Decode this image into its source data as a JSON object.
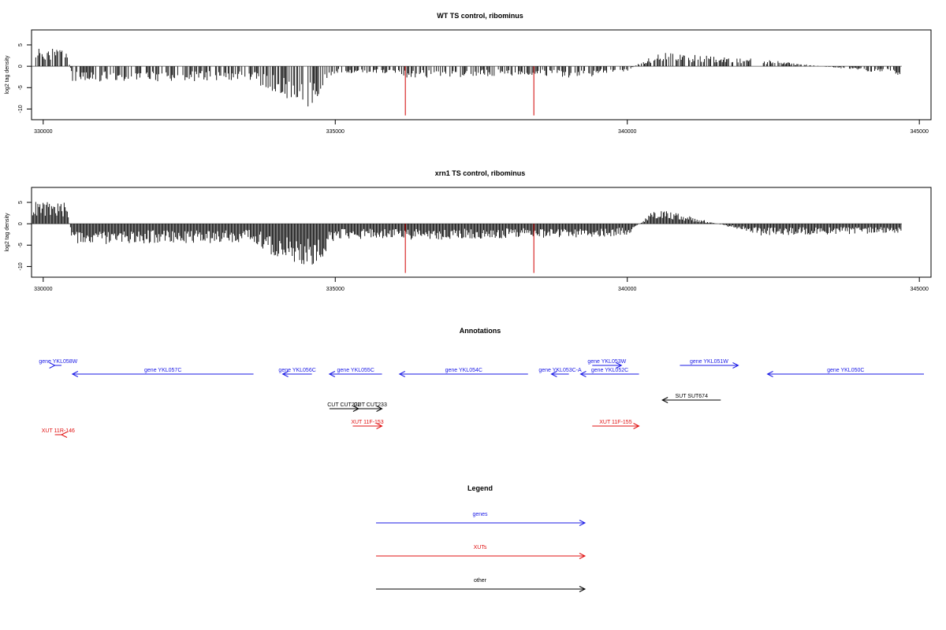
{
  "chart_data": [
    {
      "type": "bar",
      "title": "WT TS control, ribominus",
      "ylabel": "log2 tag density",
      "xlabel": "",
      "xlim": [
        329800,
        345200
      ],
      "ylim": [
        -12.5,
        8.5
      ],
      "x_ticks": [
        "330000",
        "335000",
        "340000",
        "345000"
      ],
      "y_ticks": [
        "5",
        "0",
        "-5",
        "-10"
      ],
      "grid": false,
      "series": [
        {
          "positions": [
            329800,
            330400,
            330500,
            333600,
            333800,
            334600,
            335000,
            336100,
            336200,
            338300,
            339200,
            340000,
            340500,
            342300,
            344700
          ],
          "values": [
            4.2,
            4.0,
            -3.5,
            -3.0,
            -5.0,
            -9.0,
            -1.5,
            -1.5,
            -2.5,
            -2.0,
            -2.5,
            -1.0,
            3.0,
            1.5,
            -2.0
          ]
        }
      ],
      "highlight_lines": [
        {
          "x": 336200,
          "value": -11.5,
          "color": "#d00000"
        },
        {
          "x": 338400,
          "value": -11.5,
          "color": "#d00000"
        }
      ]
    },
    {
      "type": "bar",
      "title": "xrn1 TS control, ribominus",
      "ylabel": "log2 tag density",
      "xlabel": "",
      "xlim": [
        329800,
        345200
      ],
      "ylim": [
        -12.5,
        8.5
      ],
      "x_ticks": [
        "330000",
        "335000",
        "340000",
        "345000"
      ],
      "y_ticks": [
        "5",
        "0",
        "-5",
        "-10"
      ],
      "grid": false,
      "series": [
        {
          "positions": [
            329800,
            330400,
            330500,
            333600,
            333800,
            334600,
            335000,
            336100,
            336200,
            338300,
            339200,
            340000,
            340500,
            342300,
            344700
          ],
          "values": [
            4.8,
            4.5,
            -4.5,
            -4.0,
            -6.0,
            -10.0,
            -3.5,
            -3.0,
            -3.5,
            -3.0,
            -3.0,
            -2.5,
            3.5,
            -2.5,
            -2.0
          ]
        }
      ],
      "highlight_lines": [
        {
          "x": 336200,
          "value": -11.5,
          "color": "#d00000"
        },
        {
          "x": 338400,
          "value": -11.5,
          "color": "#d00000"
        }
      ]
    }
  ],
  "annotations": {
    "title": "Annotations",
    "features": [
      {
        "label": "gene YKL058W",
        "start": 329850,
        "end": 330200,
        "row": 0,
        "strand": "+",
        "kind": "gene"
      },
      {
        "label": "gene YKL057C",
        "start": 330500,
        "end": 333600,
        "row": 1,
        "strand": "-",
        "kind": "gene"
      },
      {
        "label": "gene YKL056C",
        "start": 334100,
        "end": 334600,
        "row": 1,
        "strand": "-",
        "kind": "gene"
      },
      {
        "label": "gene YKL055C",
        "start": 334900,
        "end": 335800,
        "row": 1,
        "strand": "-",
        "kind": "gene"
      },
      {
        "label": "gene YKL054C",
        "start": 336100,
        "end": 338300,
        "row": 1,
        "strand": "-",
        "kind": "gene"
      },
      {
        "label": "gene YKL053W",
        "start": 339400,
        "end": 339900,
        "row": 0,
        "strand": "+",
        "kind": "gene"
      },
      {
        "label": "gene YKL053C-A",
        "start": 338700,
        "end": 339000,
        "row": 1,
        "strand": "-",
        "kind": "gene"
      },
      {
        "label": "gene YKL052C",
        "start": 339200,
        "end": 340200,
        "row": 1,
        "strand": "-",
        "kind": "gene"
      },
      {
        "label": "gene YKL051W",
        "start": 340900,
        "end": 341900,
        "row": 0,
        "strand": "+",
        "kind": "gene"
      },
      {
        "label": "gene YKL050C",
        "start": 342400,
        "end": 345200,
        "row": 1,
        "strand": "-",
        "kind": "gene"
      },
      {
        "label": "CUT CUT232",
        "start": 334900,
        "end": 335400,
        "row": 5,
        "strand": "+",
        "kind": "other"
      },
      {
        "label": "CUT CUT233",
        "start": 335400,
        "end": 335800,
        "row": 5,
        "strand": "+",
        "kind": "other"
      },
      {
        "label": "SUT SUT674",
        "start": 340600,
        "end": 341600,
        "row": 4,
        "strand": "-",
        "kind": "other"
      },
      {
        "label": "XUT 11R-146",
        "start": 329700,
        "end": 330200,
        "row": 8,
        "strand": "-",
        "kind": "xut"
      },
      {
        "label": "XUT 11F-153",
        "start": 335300,
        "end": 335800,
        "row": 7,
        "strand": "+",
        "kind": "xut"
      },
      {
        "label": "XUT 11F-155",
        "start": 339400,
        "end": 340200,
        "row": 7,
        "strand": "+",
        "kind": "xut"
      }
    ]
  },
  "legend": {
    "title": "Legend",
    "items": [
      {
        "label": "genes",
        "kind": "gene"
      },
      {
        "label": "XUTs",
        "kind": "xut"
      },
      {
        "label": "other",
        "kind": "other"
      }
    ]
  },
  "colors": {
    "gene": "#1a1ae6",
    "xut": "#e01010",
    "other": "#000000",
    "axis": "#000000",
    "highlight": "#d00000"
  }
}
